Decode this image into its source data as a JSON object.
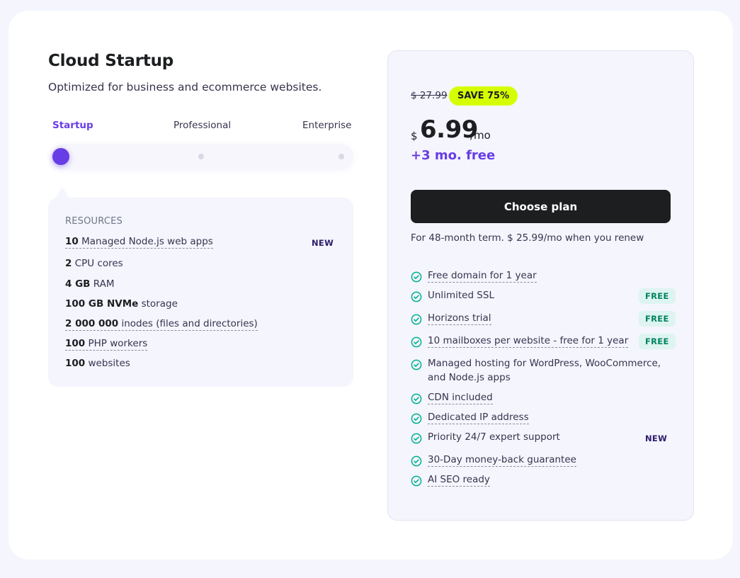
{
  "plan": {
    "title": "Cloud Startup",
    "subtitle": "Optimized for business and ecommerce websites."
  },
  "tiers": {
    "selected": "Startup",
    "items": [
      "Startup",
      "Professional",
      "Enterprise"
    ]
  },
  "resources": {
    "heading": "RESOURCES",
    "new_badge": "NEW",
    "items": [
      {
        "value": "10",
        "label": "Managed Node.js web apps"
      },
      {
        "value": "2",
        "label": "CPU cores"
      },
      {
        "value": "4 GB",
        "label": "RAM"
      },
      {
        "value": "100 GB NVMe",
        "label": "storage"
      },
      {
        "value": "2 000 000",
        "label": "inodes (files and directories)"
      },
      {
        "value": "100",
        "label": "PHP workers"
      },
      {
        "value": "100",
        "label": "websites"
      }
    ]
  },
  "pricing": {
    "old_price": "$ 27.99",
    "save_badge": "SAVE 75%",
    "currency": "$",
    "price": "6.99",
    "period": "/mo",
    "free_months": "+3 mo. free",
    "cta_label": "Choose plan",
    "term_note": "For 48-month term. $ 25.99/mo when you renew"
  },
  "features": {
    "free_badge": "FREE",
    "new_badge": "NEW",
    "items": [
      "Free domain for 1 year",
      "Unlimited SSL",
      "Horizons trial",
      "10 mailboxes per website - free for 1 year",
      "Managed hosting for WordPress, WooCommerce, and Node.js apps",
      "CDN included",
      "Dedicated IP address",
      "Priority 24/7 expert support",
      "30-Day money-back guarantee",
      "AI SEO ready"
    ]
  },
  "colors": {
    "accent": "#673de6",
    "save_badge": "#d5ff00",
    "free_badge_bg": "#def4f0",
    "free_badge_text": "#008361",
    "check": "#00b090",
    "button": "#1d1e20"
  }
}
